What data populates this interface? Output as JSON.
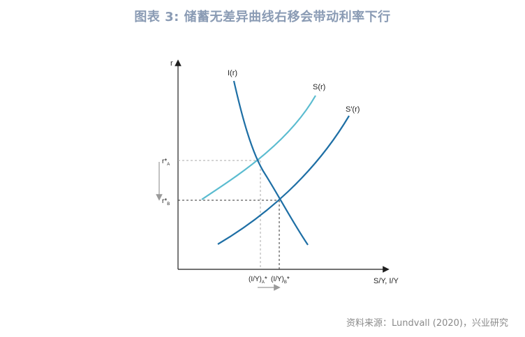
{
  "title": "图表 3: 储蓄无差异曲线右移会带动利率下行",
  "source": "资料来源：Lundvall (2020)，兴业研究",
  "axes": {
    "y_label": "r",
    "x_label": "S/Y, I/Y"
  },
  "curves": {
    "investment": "I(r)",
    "saving": "S(r)",
    "saving_shifted": "S′(r)"
  },
  "markers": {
    "rA": "r*A",
    "rB": "r*B",
    "iyA": "(I/Y)A*",
    "iyB": "(I/Y)B*"
  },
  "colors": {
    "investment": "#1e6fa5",
    "saving": "#5bbcd0",
    "saving_shifted": "#1e6fa5",
    "axis": "#1f1f1f",
    "guide": "#9a9a9a",
    "arrow": "#9a9a9a",
    "title": "#8a9bb4"
  }
}
